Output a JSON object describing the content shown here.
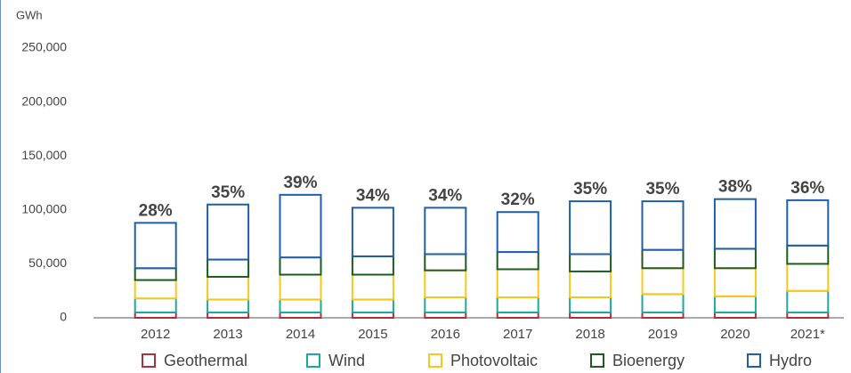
{
  "chart_data": {
    "type": "stacked_bar",
    "y_axis_label": "GWh",
    "categories": [
      "2012",
      "2013",
      "2014",
      "2015",
      "2016",
      "2017",
      "2018",
      "2019",
      "2020",
      "2021*"
    ],
    "series": [
      {
        "name": "Geothermal",
        "color": "#a8323e",
        "values": [
          5000,
          5000,
          5000,
          5000,
          5000,
          5000,
          5000,
          5000,
          5000,
          5000
        ]
      },
      {
        "name": "Wind",
        "color": "#1fa89b",
        "values": [
          13000,
          12000,
          12000,
          12000,
          14000,
          14000,
          14000,
          17000,
          15000,
          20000
        ]
      },
      {
        "name": "Photovoltaic",
        "color": "#f6c81e",
        "values": [
          17000,
          21000,
          23000,
          23000,
          25000,
          26000,
          24000,
          24000,
          26000,
          25000
        ]
      },
      {
        "name": "Bioenergy",
        "color": "#1f5a1f",
        "values": [
          11000,
          16000,
          16000,
          17000,
          15000,
          16000,
          16000,
          17000,
          18000,
          17000
        ]
      },
      {
        "name": "Hydro",
        "color": "#1f5ea8",
        "values": [
          42000,
          51000,
          58000,
          45000,
          43000,
          37000,
          49000,
          45000,
          46000,
          42000
        ]
      }
    ],
    "annotations": [
      "28%",
      "35%",
      "39%",
      "34%",
      "34%",
      "32%",
      "35%",
      "35%",
      "38%",
      "36%"
    ],
    "ylim": [
      0,
      250000
    ],
    "yticks": [
      0,
      {
        "value": 50000,
        "label": "50,000"
      },
      {
        "value": 100000,
        "label": "100,000"
      },
      {
        "value": 150000,
        "label": "150,000"
      },
      {
        "value": 200000,
        "label": "200,000"
      },
      {
        "value": 250000,
        "label": "250,000"
      }
    ],
    "legend": "bottom"
  }
}
